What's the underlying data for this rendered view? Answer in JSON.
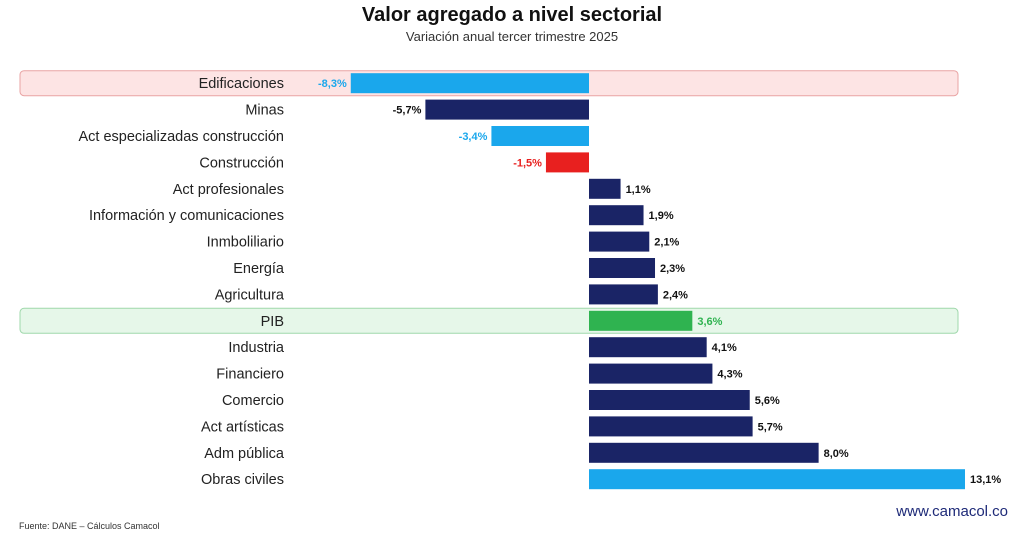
{
  "header": {
    "title": "Valor agregado a nivel sectorial",
    "subtitle": "Variación anual tercer trimestre 2025"
  },
  "footer": {
    "source": "Fuente: DANE – Cálculos Camacol",
    "website": "www.camacol.co"
  },
  "colors": {
    "navy": "#1a2466",
    "light_blue": "#1aa7ec",
    "red": "#e8201f",
    "green": "#2fb350",
    "highlight_red_bg": "#fde4e4",
    "highlight_green_bg": "#e6f7e9"
  },
  "chart_data": {
    "type": "bar",
    "orientation": "horizontal",
    "title": "Valor agregado a nivel sectorial",
    "subtitle": "Variación anual tercer trimestre 2025",
    "unit": "%",
    "categories": [
      "Edificaciones",
      "Minas",
      "Act especializadas construcción",
      "Construcción",
      "Act profesionales",
      "Información y comunicaciones",
      "Inmboliliario",
      "Energía",
      "Agricultura",
      "PIB",
      "Industria",
      "Financiero",
      "Comercio",
      "Act artísticas",
      "Adm pública",
      "Obras civiles"
    ],
    "values": [
      -8.3,
      -5.7,
      -3.4,
      -1.5,
      1.1,
      1.9,
      2.1,
      2.3,
      2.4,
      3.6,
      4.1,
      4.3,
      5.6,
      5.7,
      8.0,
      13.1
    ],
    "labels": [
      "-8,3%",
      "-5,7%",
      "-3,4%",
      "-1,5%",
      "1,1%",
      "1,9%",
      "2,1%",
      "2,3%",
      "2,4%",
      "3,6%",
      "4,1%",
      "4,3%",
      "5,6%",
      "5,7%",
      "8,0%",
      "13,1%"
    ],
    "bar_colors": [
      "light_blue",
      "navy",
      "light_blue",
      "red",
      "navy",
      "navy",
      "navy",
      "navy",
      "navy",
      "green",
      "navy",
      "navy",
      "navy",
      "navy",
      "navy",
      "light_blue"
    ],
    "label_colors": [
      "light_blue",
      "dark",
      "light_blue",
      "red",
      "dark",
      "dark",
      "dark",
      "dark",
      "dark",
      "green",
      "dark",
      "dark",
      "dark",
      "dark",
      "dark",
      "dark"
    ],
    "highlighted_rows": [
      {
        "category": "Edificaciones",
        "style": "red"
      },
      {
        "category": "PIB",
        "style": "green"
      }
    ],
    "xlim": [
      -8.3,
      13.1
    ],
    "grid": false,
    "legend": "none"
  }
}
